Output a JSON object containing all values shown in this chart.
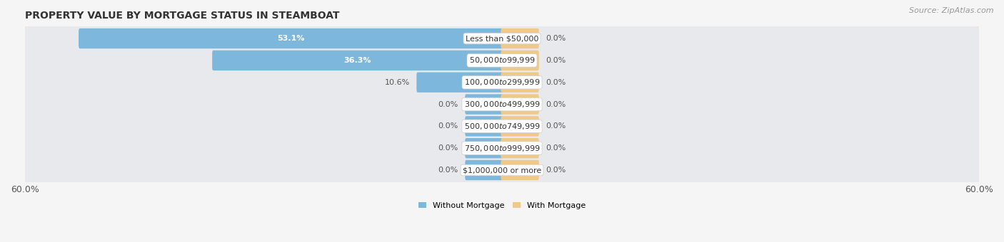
{
  "title": "PROPERTY VALUE BY MORTGAGE STATUS IN STEAMBOAT",
  "source": "Source: ZipAtlas.com",
  "categories": [
    "Less than $50,000",
    "$50,000 to $99,999",
    "$100,000 to $299,999",
    "$300,000 to $499,999",
    "$500,000 to $749,999",
    "$750,000 to $999,999",
    "$1,000,000 or more"
  ],
  "without_mortgage": [
    53.1,
    36.3,
    10.6,
    0.0,
    0.0,
    0.0,
    0.0
  ],
  "with_mortgage": [
    0.0,
    0.0,
    0.0,
    0.0,
    0.0,
    0.0,
    0.0
  ],
  "without_mortgage_color": "#7db8dc",
  "with_mortgage_color": "#f0c98a",
  "bar_row_bg_color": "#e4e6ea",
  "bar_row_bg_light": "#f0f1f4",
  "xlim": 60.0,
  "legend_labels": [
    "Without Mortgage",
    "With Mortgage"
  ],
  "title_fontsize": 10,
  "source_fontsize": 8,
  "tick_fontsize": 9,
  "label_fontsize": 8,
  "category_fontsize": 8,
  "zero_bar_stub": 4.5
}
